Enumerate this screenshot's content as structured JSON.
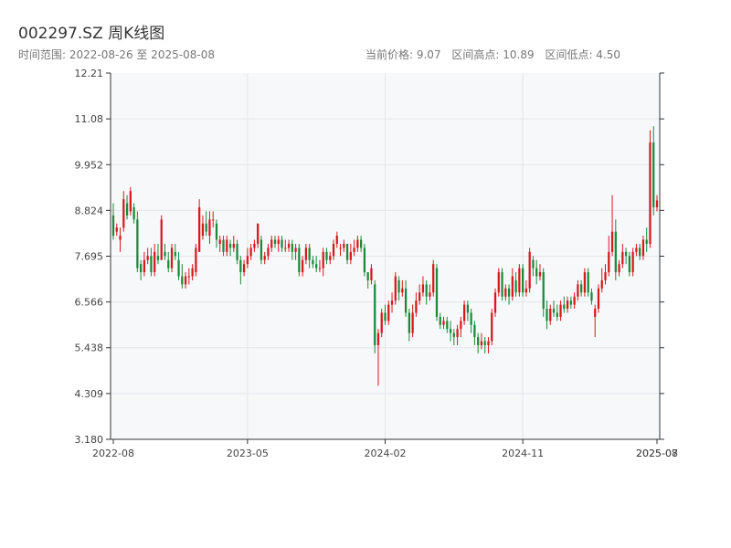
{
  "header": {
    "title": "002297.SZ 周K线图",
    "range_label": "时间范围: 2022-08-26 至 2025-08-08",
    "current_price_label": "当前价格: 9.07",
    "high_label": "区间高点: 10.89",
    "low_label": "区间低点: 4.50"
  },
  "colors": {
    "up": "#d7191c",
    "down": "#1a8a3a",
    "plot_bg": "#f7f8fa",
    "grid": "#e3e6ea",
    "axis": "#333333"
  },
  "chart_data": {
    "type": "candlestick",
    "title": "002297.SZ 周K线图",
    "ylim": [
      3.18,
      12.21
    ],
    "y_ticks": [
      "3.180",
      "4.309",
      "5.438",
      "6.566",
      "7.695",
      "8.824",
      "9.952",
      "11.08",
      "12.21"
    ],
    "x_ticks": [
      {
        "label": "2022-08",
        "index": 0
      },
      {
        "label": "2023-05",
        "index": 39
      },
      {
        "label": "2024-02",
        "index": 79
      },
      {
        "label": "2024-11",
        "index": 119
      },
      {
        "label": "2025-07",
        "index": 158
      },
      {
        "label": "2025-08",
        "index": 158
      }
    ],
    "candles": [
      [
        8.7,
        8.2,
        9.0,
        8.1
      ],
      [
        8.3,
        8.4,
        8.5,
        8.2
      ],
      [
        8.1,
        8.2,
        8.4,
        7.8
      ],
      [
        8.4,
        9.1,
        9.3,
        8.3
      ],
      [
        9.0,
        8.7,
        9.2,
        8.6
      ],
      [
        8.8,
        9.3,
        9.4,
        8.7
      ],
      [
        8.9,
        8.6,
        9.0,
        8.5
      ],
      [
        8.6,
        7.4,
        8.8,
        7.3
      ],
      [
        7.5,
        7.3,
        7.6,
        7.1
      ],
      [
        7.3,
        7.6,
        7.8,
        7.2
      ],
      [
        7.6,
        7.7,
        7.9,
        7.5
      ],
      [
        7.7,
        7.3,
        7.9,
        7.2
      ],
      [
        7.3,
        7.8,
        8.0,
        7.2
      ],
      [
        7.7,
        7.6,
        8.0,
        7.5
      ],
      [
        7.6,
        8.6,
        8.7,
        7.6
      ],
      [
        7.8,
        7.7,
        8.0,
        7.6
      ],
      [
        7.6,
        7.4,
        7.8,
        7.3
      ],
      [
        7.4,
        7.9,
        8.0,
        7.3
      ],
      [
        7.8,
        7.7,
        8.0,
        7.6
      ],
      [
        7.6,
        7.2,
        7.8,
        7.1
      ],
      [
        7.2,
        7.0,
        7.5,
        6.9
      ],
      [
        7.0,
        7.2,
        7.3,
        6.9
      ],
      [
        7.2,
        7.2,
        7.4,
        7.0
      ],
      [
        7.2,
        7.4,
        7.5,
        7.1
      ],
      [
        7.3,
        7.9,
        8.0,
        7.2
      ],
      [
        7.8,
        8.9,
        9.1,
        7.8
      ],
      [
        8.2,
        8.5,
        8.7,
        8.1
      ],
      [
        8.5,
        8.3,
        8.8,
        8.2
      ],
      [
        8.2,
        8.6,
        8.8,
        8.0
      ],
      [
        8.6,
        8.6,
        8.8,
        8.4
      ],
      [
        8.5,
        8.1,
        8.6,
        7.9
      ],
      [
        8.0,
        8.1,
        8.2,
        7.8
      ],
      [
        8.1,
        7.8,
        8.2,
        7.7
      ],
      [
        7.8,
        8.1,
        8.2,
        7.7
      ],
      [
        8.0,
        7.9,
        8.1,
        7.7
      ],
      [
        7.9,
        8.0,
        8.2,
        7.8
      ],
      [
        8.0,
        7.6,
        8.1,
        7.5
      ],
      [
        7.6,
        7.3,
        7.7,
        7.0
      ],
      [
        7.3,
        7.5,
        7.6,
        7.2
      ],
      [
        7.5,
        7.7,
        7.9,
        7.4
      ],
      [
        7.7,
        7.9,
        8.0,
        7.6
      ],
      [
        7.9,
        8.0,
        8.1,
        7.8
      ],
      [
        8.0,
        8.5,
        8.5,
        7.9
      ],
      [
        8.1,
        7.6,
        8.2,
        7.5
      ],
      [
        7.6,
        7.7,
        7.8,
        7.5
      ],
      [
        7.7,
        7.9,
        8.0,
        7.6
      ],
      [
        7.9,
        8.1,
        8.2,
        7.8
      ],
      [
        8.1,
        8.0,
        8.2,
        7.9
      ],
      [
        8.0,
        8.1,
        8.2,
        7.8
      ],
      [
        8.1,
        7.9,
        8.2,
        7.8
      ],
      [
        7.9,
        7.9,
        8.1,
        7.8
      ],
      [
        7.9,
        8.0,
        8.1,
        7.8
      ],
      [
        8.0,
        7.8,
        8.1,
        7.6
      ],
      [
        7.8,
        7.9,
        8.0,
        7.6
      ],
      [
        7.9,
        7.3,
        8.0,
        7.2
      ],
      [
        7.3,
        7.6,
        7.7,
        7.2
      ],
      [
        7.6,
        7.9,
        8.0,
        7.5
      ],
      [
        7.9,
        7.6,
        8.0,
        7.4
      ],
      [
        7.6,
        7.5,
        7.7,
        7.4
      ],
      [
        7.5,
        7.4,
        7.7,
        7.3
      ],
      [
        7.4,
        7.4,
        7.6,
        7.3
      ],
      [
        7.4,
        7.8,
        7.9,
        7.2
      ],
      [
        7.8,
        7.6,
        7.9,
        7.5
      ],
      [
        7.6,
        7.7,
        7.8,
        7.5
      ],
      [
        7.7,
        8.0,
        8.1,
        7.6
      ],
      [
        8.0,
        8.2,
        8.3,
        7.9
      ],
      [
        7.9,
        7.9,
        8.0,
        7.7
      ],
      [
        7.9,
        8.0,
        8.1,
        7.8
      ],
      [
        8.0,
        7.6,
        8.0,
        7.5
      ],
      [
        7.6,
        7.8,
        8.0,
        7.5
      ],
      [
        7.8,
        7.9,
        8.1,
        7.7
      ],
      [
        7.9,
        8.1,
        8.2,
        7.8
      ],
      [
        8.1,
        7.9,
        8.2,
        7.8
      ],
      [
        7.9,
        7.3,
        8.0,
        7.2
      ],
      [
        7.3,
        7.1,
        7.3,
        6.9
      ],
      [
        7.1,
        7.4,
        7.5,
        7.0
      ],
      [
        7.0,
        5.5,
        7.1,
        5.3
      ],
      [
        5.5,
        5.8,
        5.9,
        4.5
      ],
      [
        5.8,
        6.3,
        6.4,
        5.7
      ],
      [
        6.3,
        6.1,
        6.5,
        6.0
      ],
      [
        6.1,
        6.5,
        6.6,
        6.0
      ],
      [
        6.5,
        6.6,
        6.8,
        6.3
      ],
      [
        6.6,
        7.2,
        7.3,
        6.5
      ],
      [
        7.1,
        6.8,
        7.2,
        6.6
      ],
      [
        6.8,
        6.9,
        7.1,
        6.7
      ],
      [
        6.9,
        6.3,
        7.1,
        6.2
      ],
      [
        6.3,
        5.8,
        6.4,
        5.6
      ],
      [
        5.8,
        6.3,
        6.5,
        5.7
      ],
      [
        6.3,
        6.6,
        6.8,
        6.2
      ],
      [
        6.6,
        6.8,
        7.0,
        6.5
      ],
      [
        6.8,
        7.0,
        7.2,
        6.7
      ],
      [
        7.0,
        6.7,
        7.1,
        6.5
      ],
      [
        6.7,
        6.8,
        7.0,
        6.6
      ],
      [
        6.8,
        7.5,
        7.6,
        6.7
      ],
      [
        7.4,
        6.2,
        7.5,
        6.1
      ],
      [
        6.2,
        6.0,
        6.3,
        5.9
      ],
      [
        6.0,
        6.1,
        6.2,
        5.9
      ],
      [
        6.1,
        5.9,
        6.2,
        5.8
      ],
      [
        5.9,
        5.8,
        6.1,
        5.6
      ],
      [
        5.8,
        5.7,
        5.9,
        5.5
      ],
      [
        5.7,
        5.9,
        6.0,
        5.5
      ],
      [
        5.9,
        6.1,
        6.2,
        5.7
      ],
      [
        6.1,
        6.5,
        6.6,
        6.0
      ],
      [
        6.5,
        6.3,
        6.6,
        6.1
      ],
      [
        6.3,
        6.0,
        6.4,
        5.8
      ],
      [
        6.0,
        5.7,
        6.1,
        5.5
      ],
      [
        5.7,
        5.5,
        5.8,
        5.3
      ],
      [
        5.5,
        5.6,
        5.8,
        5.4
      ],
      [
        5.6,
        5.5,
        5.7,
        5.3
      ],
      [
        5.5,
        5.6,
        5.7,
        5.3
      ],
      [
        5.6,
        6.3,
        6.4,
        5.5
      ],
      [
        6.3,
        6.8,
        6.9,
        6.2
      ],
      [
        6.8,
        7.3,
        7.4,
        6.7
      ],
      [
        7.3,
        6.7,
        7.4,
        6.6
      ],
      [
        6.7,
        6.9,
        7.0,
        6.6
      ],
      [
        6.9,
        6.7,
        7.0,
        6.5
      ],
      [
        6.7,
        7.2,
        7.4,
        6.6
      ],
      [
        7.1,
        6.8,
        7.3,
        6.7
      ],
      [
        6.8,
        7.4,
        7.5,
        6.7
      ],
      [
        7.4,
        6.8,
        7.5,
        6.7
      ],
      [
        6.8,
        6.9,
        7.1,
        6.7
      ],
      [
        6.9,
        7.8,
        7.9,
        6.8
      ],
      [
        7.6,
        7.4,
        7.7,
        7.2
      ],
      [
        7.4,
        7.2,
        7.6,
        7.0
      ],
      [
        7.2,
        7.3,
        7.5,
        7.1
      ],
      [
        7.3,
        6.4,
        7.4,
        6.2
      ],
      [
        6.4,
        6.1,
        6.6,
        5.9
      ],
      [
        6.1,
        6.4,
        6.5,
        6.0
      ],
      [
        6.4,
        6.3,
        6.6,
        6.2
      ],
      [
        6.3,
        6.2,
        6.5,
        6.1
      ],
      [
        6.2,
        6.5,
        6.6,
        6.1
      ],
      [
        6.5,
        6.4,
        6.7,
        6.3
      ],
      [
        6.4,
        6.6,
        6.7,
        6.3
      ],
      [
        6.6,
        6.5,
        6.7,
        6.4
      ],
      [
        6.5,
        6.7,
        6.8,
        6.4
      ],
      [
        6.7,
        7.0,
        7.1,
        6.6
      ],
      [
        7.0,
        6.8,
        7.1,
        6.7
      ],
      [
        6.8,
        7.3,
        7.4,
        6.7
      ],
      [
        7.3,
        6.8,
        7.4,
        6.7
      ],
      [
        6.8,
        6.6,
        6.9,
        6.5
      ],
      [
        6.2,
        6.4,
        6.5,
        5.7
      ],
      [
        6.4,
        6.9,
        7.0,
        6.3
      ],
      [
        6.9,
        7.1,
        7.4,
        6.8
      ],
      [
        7.1,
        7.3,
        7.5,
        7.0
      ],
      [
        7.3,
        7.8,
        8.2,
        7.2
      ],
      [
        7.8,
        8.3,
        9.2,
        7.7
      ],
      [
        8.3,
        7.3,
        8.6,
        7.1
      ],
      [
        7.3,
        7.5,
        7.6,
        7.2
      ],
      [
        7.5,
        7.8,
        8.0,
        7.4
      ],
      [
        7.8,
        7.7,
        7.9,
        7.5
      ],
      [
        7.7,
        7.3,
        7.8,
        7.2
      ],
      [
        7.3,
        7.8,
        7.9,
        7.2
      ],
      [
        7.8,
        7.9,
        8.0,
        7.7
      ],
      [
        7.9,
        7.7,
        8.0,
        7.6
      ],
      [
        7.7,
        8.1,
        8.2,
        7.6
      ],
      [
        8.1,
        8.0,
        8.4,
        7.8
      ],
      [
        8.0,
        10.5,
        10.8,
        7.9
      ],
      [
        10.5,
        8.9,
        10.9,
        8.7
      ],
      [
        8.9,
        9.07,
        9.2,
        8.8
      ]
    ]
  }
}
